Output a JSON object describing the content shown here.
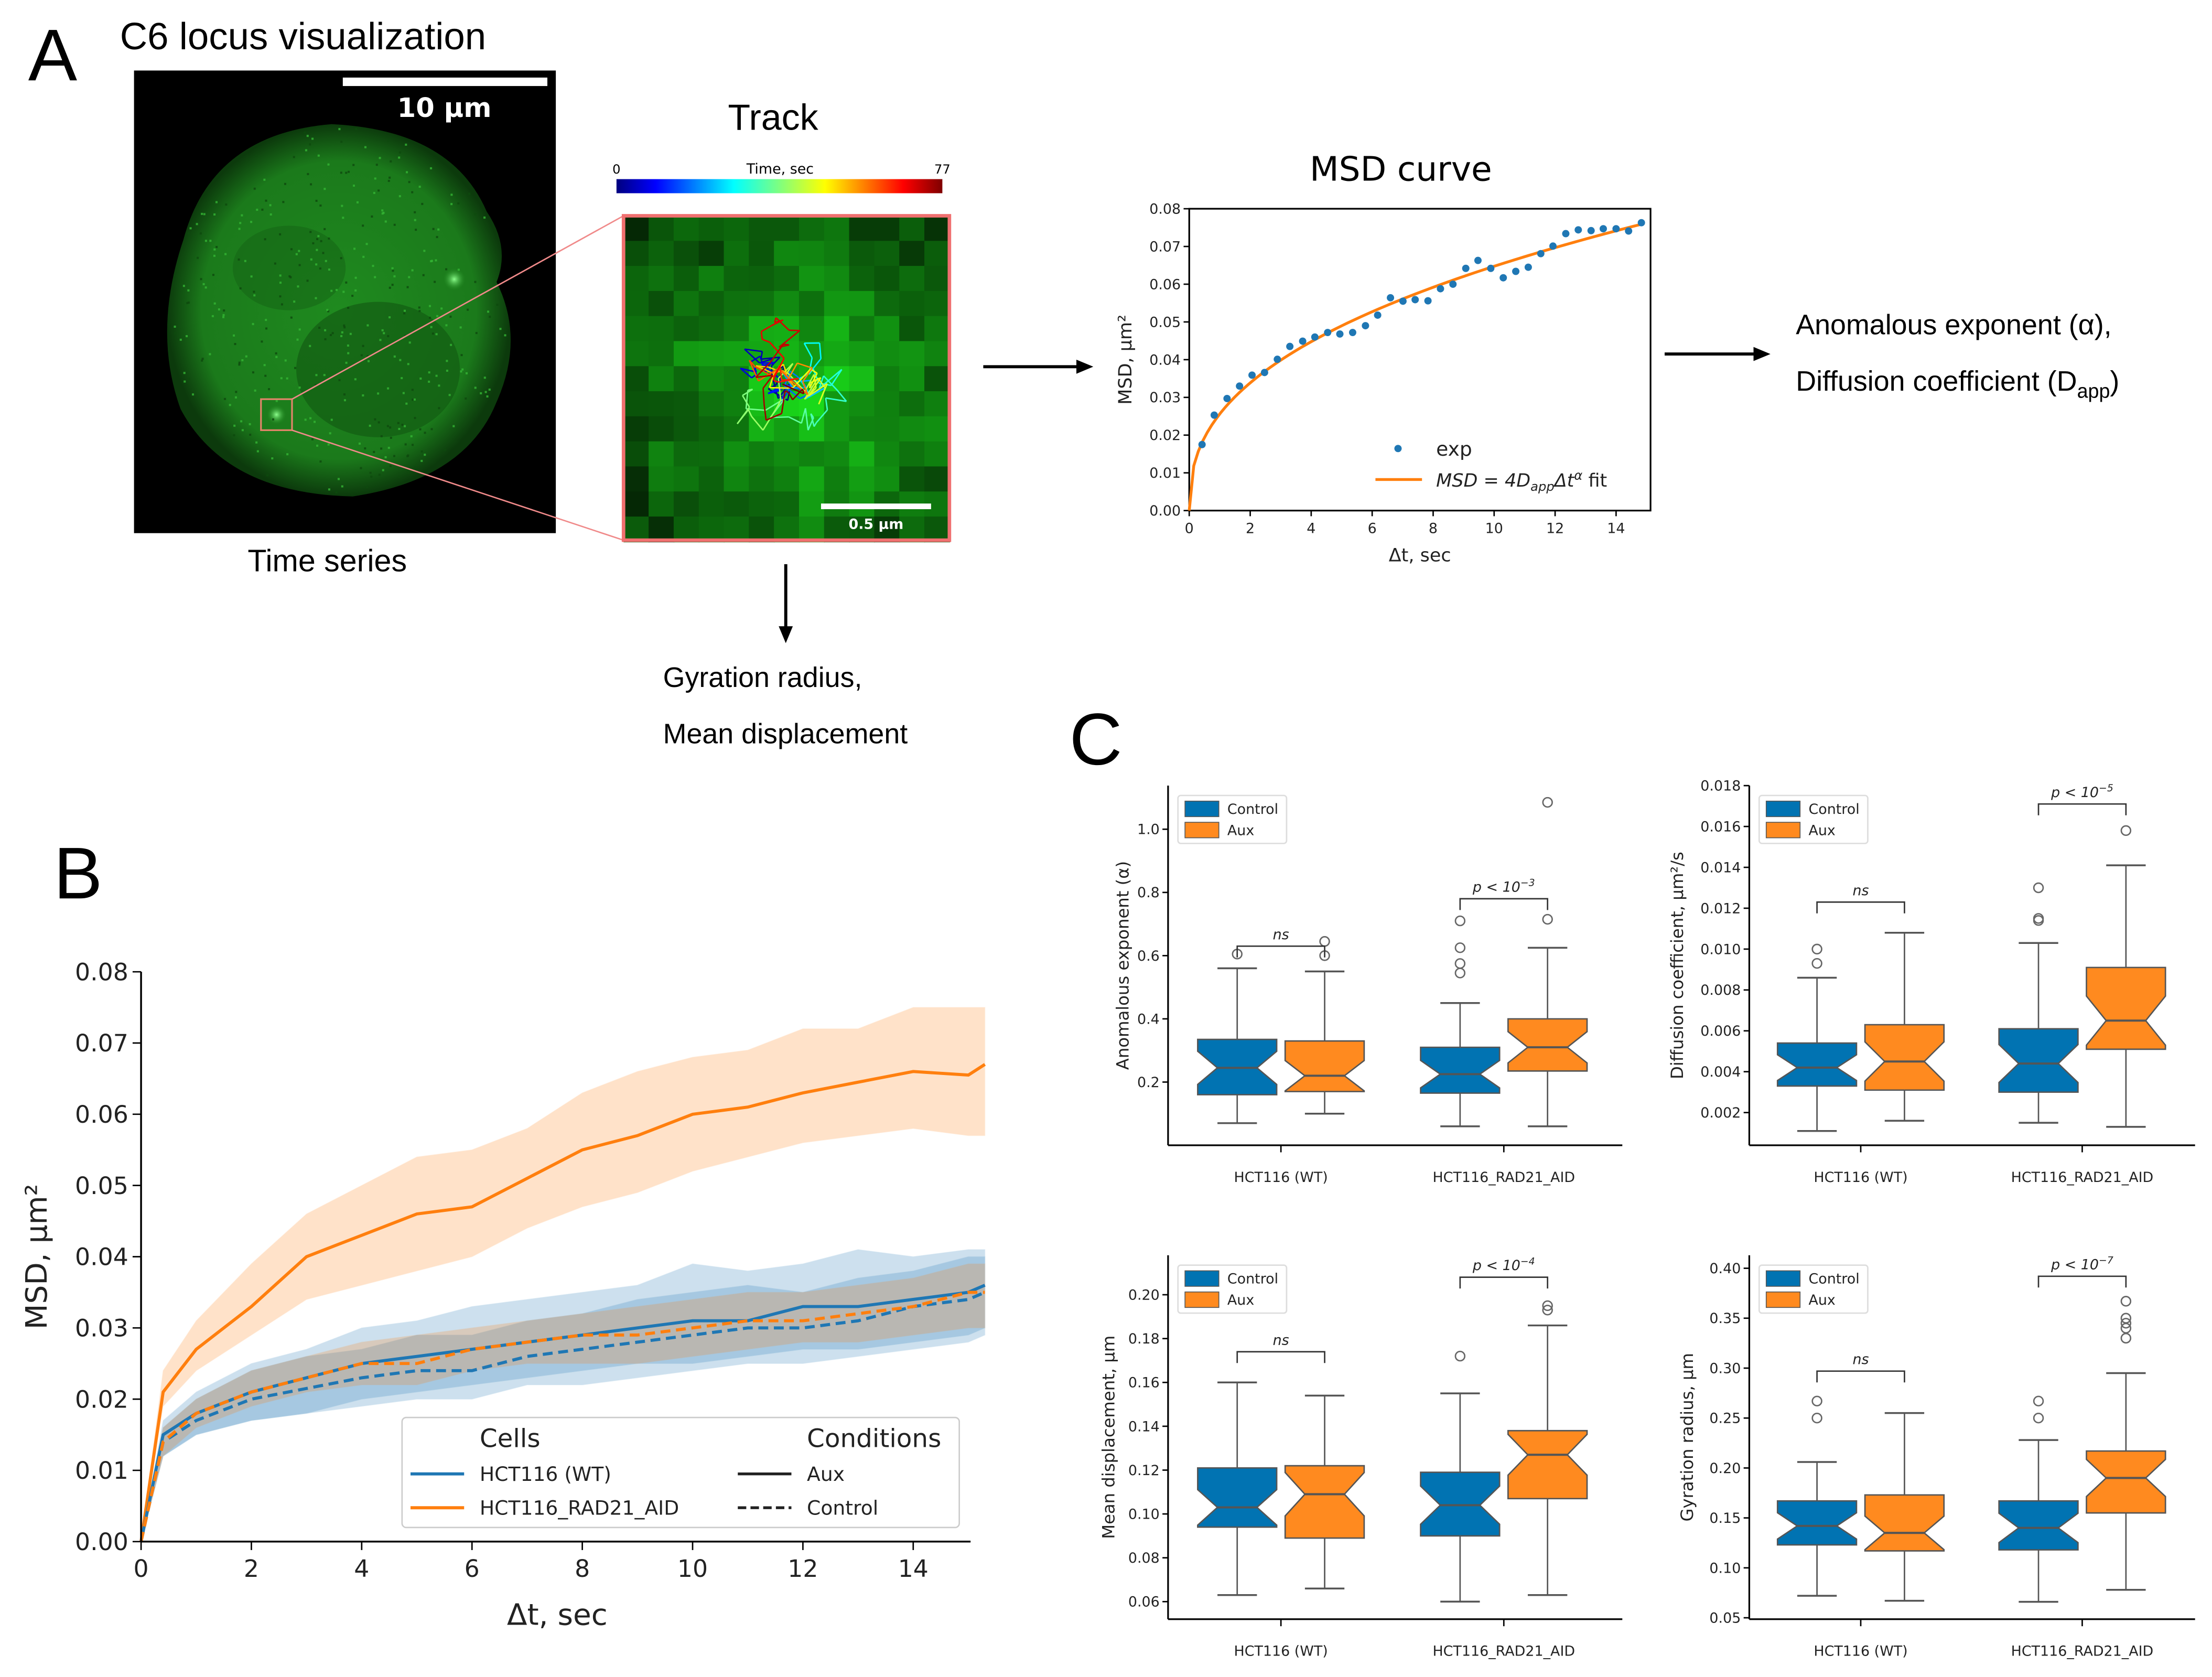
{
  "panel_labels": {
    "a": "A",
    "b": "B",
    "c": "C"
  },
  "panelA": {
    "title": "C6 locus visualization",
    "scalebar": "10 μm",
    "caption": "Time series",
    "track_title": "Track",
    "colorbar": {
      "min": "0",
      "label": "Time, sec",
      "max": "77"
    },
    "track_scalebar": "0.5 μm",
    "gyration_text": "Gyration radius,",
    "mean_disp_text": "Mean displacement",
    "outputs": {
      "line1": "Anomalous exponent (α),",
      "line2_main": "Diffusion coefficient (D",
      "line2_sub": "app",
      "line2_end": ")"
    }
  },
  "colors": {
    "blue": "#1f77b4",
    "orange": "#ff7f0e",
    "box_blue": "#0173b2",
    "box_orange": "#ff8a1f"
  },
  "chart_data": [
    {
      "id": "msd_curve",
      "type": "scatter",
      "title": "MSD curve",
      "xlabel": "Δt, sec",
      "ylabel": "MSD, μm²",
      "xlim": [
        0,
        15.13
      ],
      "ylim": [
        0,
        0.08
      ],
      "xticks": [
        "0",
        "2",
        "4",
        "6",
        "8",
        "10",
        "12",
        "14"
      ],
      "yticks": [
        "0.00",
        "0.01",
        "0.02",
        "0.03",
        "0.04",
        "0.05",
        "0.06",
        "0.07",
        "0.08"
      ],
      "legend": {
        "exp": "exp",
        "fit_parts": [
          "MSD = 4D",
          "app",
          "Δt",
          "α",
          "  fit"
        ],
        "placement": "lower-right"
      },
      "points": {
        "x": [
          0.42,
          0.82,
          1.24,
          1.65,
          2.06,
          2.47,
          2.89,
          3.3,
          3.72,
          4.12,
          4.54,
          4.94,
          5.36,
          5.78,
          6.18,
          6.6,
          7.01,
          7.41,
          7.83,
          8.24,
          8.65,
          9.07,
          9.47,
          9.89,
          10.3,
          10.71,
          11.12,
          11.53,
          11.93,
          12.35,
          12.76,
          13.18,
          13.58,
          14.0,
          14.41,
          14.83
        ],
        "y": [
          0.0175,
          0.0253,
          0.0297,
          0.033,
          0.0359,
          0.0366,
          0.0401,
          0.0435,
          0.0449,
          0.046,
          0.0472,
          0.0468,
          0.0472,
          0.049,
          0.0518,
          0.0564,
          0.0555,
          0.0559,
          0.0556,
          0.0588,
          0.06,
          0.0642,
          0.0663,
          0.0642,
          0.0617,
          0.0634,
          0.0645,
          0.0681,
          0.0701,
          0.0734,
          0.0744,
          0.0742,
          0.0747,
          0.0747,
          0.0741,
          0.0763
        ]
      },
      "fit": {
        "coefficient_4D": 0.0256,
        "alpha": 0.403,
        "x_max": 14.83
      }
    },
    {
      "id": "msd_comparison",
      "type": "line",
      "xlabel": "Δt, sec",
      "ylabel": "MSD, μm²",
      "xlim": [
        0,
        15.04
      ],
      "ylim": [
        0,
        0.08
      ],
      "xticks": [
        "0",
        "2",
        "4",
        "6",
        "8",
        "10",
        "12",
        "14"
      ],
      "yticks": [
        "0.00",
        "0.01",
        "0.02",
        "0.03",
        "0.04",
        "0.05",
        "0.06",
        "0.07",
        "0.08"
      ],
      "legend": {
        "cells_title": "Cells",
        "cells": [
          "HCT116 (WT)",
          "HCT116_RAD21_AID"
        ],
        "conditions_title": "Conditions",
        "conditions": [
          "Aux",
          "Control"
        ],
        "placement": "lower-right"
      },
      "x": [
        0,
        0.4,
        1,
        2,
        3,
        4,
        5,
        6,
        7,
        8,
        9,
        10,
        11,
        12,
        13,
        14,
        15,
        15.3
      ],
      "series": [
        {
          "name": "HCT116_RAD21_AID Aux",
          "color": "#ff7f0e",
          "dashed": false,
          "y": [
            0,
            0.021,
            0.027,
            0.033,
            0.04,
            0.043,
            0.046,
            0.047,
            0.051,
            0.055,
            0.057,
            0.06,
            0.061,
            0.063,
            0.0645,
            0.066,
            0.0655,
            0.067
          ],
          "lower": [
            0,
            0.019,
            0.024,
            0.029,
            0.034,
            0.036,
            0.038,
            0.04,
            0.044,
            0.047,
            0.049,
            0.052,
            0.054,
            0.056,
            0.057,
            0.058,
            0.057,
            0.057
          ],
          "upper": [
            0,
            0.024,
            0.031,
            0.039,
            0.046,
            0.05,
            0.054,
            0.055,
            0.058,
            0.063,
            0.066,
            0.068,
            0.069,
            0.072,
            0.072,
            0.075,
            0.075,
            0.075
          ]
        },
        {
          "name": "HCT116 (WT) Aux",
          "color": "#1f77b4",
          "dashed": false,
          "y": [
            0,
            0.015,
            0.018,
            0.021,
            0.023,
            0.025,
            0.026,
            0.027,
            0.028,
            0.029,
            0.03,
            0.031,
            0.031,
            0.033,
            0.033,
            0.034,
            0.035,
            0.036
          ],
          "lower": [
            0,
            0.012,
            0.015,
            0.017,
            0.018,
            0.02,
            0.021,
            0.022,
            0.023,
            0.024,
            0.025,
            0.025,
            0.026,
            0.027,
            0.027,
            0.028,
            0.029,
            0.03
          ],
          "upper": [
            0,
            0.017,
            0.021,
            0.025,
            0.027,
            0.03,
            0.031,
            0.033,
            0.034,
            0.035,
            0.036,
            0.039,
            0.038,
            0.039,
            0.041,
            0.04,
            0.041,
            0.041
          ]
        },
        {
          "name": "HCT116 (WT) Control",
          "color": "#1f77b4",
          "dashed": true,
          "y": [
            0,
            0.014,
            0.017,
            0.02,
            0.0215,
            0.023,
            0.024,
            0.024,
            0.026,
            0.027,
            0.028,
            0.029,
            0.03,
            0.03,
            0.031,
            0.033,
            0.034,
            0.035
          ],
          "lower": [
            0,
            0.012,
            0.015,
            0.017,
            0.018,
            0.019,
            0.02,
            0.02,
            0.022,
            0.022,
            0.023,
            0.024,
            0.025,
            0.025,
            0.026,
            0.027,
            0.028,
            0.029
          ],
          "upper": [
            0,
            0.016,
            0.02,
            0.024,
            0.026,
            0.027,
            0.029,
            0.029,
            0.031,
            0.032,
            0.034,
            0.035,
            0.036,
            0.035,
            0.037,
            0.038,
            0.04,
            0.04
          ]
        },
        {
          "name": "HCT116_RAD21_AID Control",
          "color": "#ff7f0e",
          "dashed": true,
          "y": [
            0,
            0.014,
            0.018,
            0.021,
            0.023,
            0.025,
            0.025,
            0.027,
            0.028,
            0.029,
            0.029,
            0.03,
            0.031,
            0.031,
            0.032,
            0.033,
            0.035,
            0.035
          ],
          "lower": [
            0,
            0.012,
            0.016,
            0.019,
            0.021,
            0.022,
            0.022,
            0.024,
            0.025,
            0.025,
            0.025,
            0.026,
            0.027,
            0.028,
            0.028,
            0.029,
            0.03,
            0.03
          ],
          "upper": [
            0,
            0.016,
            0.02,
            0.024,
            0.026,
            0.028,
            0.029,
            0.03,
            0.031,
            0.032,
            0.033,
            0.034,
            0.035,
            0.035,
            0.036,
            0.037,
            0.039,
            0.039
          ]
        }
      ]
    },
    {
      "id": "box_alpha",
      "type": "box",
      "ylabel": "Anomalous exponent (α)",
      "ylim": [
        0,
        1.138
      ],
      "yticks": [
        "0.2",
        "0.4",
        "0.6",
        "0.8",
        "1.0"
      ],
      "categories": [
        "HCT116 (WT)",
        "HCT116_RAD21_AID"
      ],
      "legend": [
        "Control",
        "Aux"
      ],
      "boxes": [
        [
          {
            "whislo": 0.07,
            "q1": 0.16,
            "med": 0.245,
            "q3": 0.335,
            "whishi": 0.56,
            "fliers": [
              0.605
            ]
          },
          {
            "whislo": 0.1,
            "q1": 0.17,
            "med": 0.22,
            "q3": 0.33,
            "whishi": 0.55,
            "fliers": [
              0.6,
              0.645
            ]
          }
        ],
        [
          {
            "whislo": 0.06,
            "q1": 0.165,
            "med": 0.225,
            "q3": 0.31,
            "whishi": 0.45,
            "fliers": [
              0.545,
              0.575,
              0.625,
              0.71
            ]
          },
          {
            "whislo": 0.06,
            "q1": 0.235,
            "med": 0.31,
            "q3": 0.4,
            "whishi": 0.625,
            "fliers": [
              0.715,
              1.085
            ]
          }
        ]
      ],
      "annotations": [
        {
          "text": "ns",
          "y": 0.63
        },
        {
          "text": "p < 10",
          "exp": "−3",
          "y": 0.78
        }
      ]
    },
    {
      "id": "box_diffusion",
      "type": "box",
      "ylabel": "Diffusion coefficient, μm²/s",
      "ylim": [
        0.0004,
        0.018
      ],
      "yticks": [
        "0.002",
        "0.004",
        "0.006",
        "0.008",
        "0.010",
        "0.012",
        "0.014",
        "0.016",
        "0.018"
      ],
      "categories": [
        "HCT116 (WT)",
        "HCT116_RAD21_AID"
      ],
      "legend": [
        "Control",
        "Aux"
      ],
      "boxes": [
        [
          {
            "whislo": 0.0011,
            "q1": 0.0033,
            "med": 0.0042,
            "q3": 0.0054,
            "whishi": 0.0086,
            "fliers": [
              0.0093,
              0.01
            ]
          },
          {
            "whislo": 0.0016,
            "q1": 0.0031,
            "med": 0.0045,
            "q3": 0.0063,
            "whishi": 0.0108,
            "fliers": []
          }
        ],
        [
          {
            "whislo": 0.0015,
            "q1": 0.003,
            "med": 0.0044,
            "q3": 0.0061,
            "whishi": 0.0103,
            "fliers": [
              0.0114,
              0.0115,
              0.013
            ]
          },
          {
            "whislo": 0.0013,
            "q1": 0.0051,
            "med": 0.0065,
            "q3": 0.0091,
            "whishi": 0.0141,
            "fliers": [
              0.0158
            ]
          }
        ]
      ],
      "annotations": [
        {
          "text": "ns",
          "y": 0.0123
        },
        {
          "text": "p < 10",
          "exp": "−5",
          "y": 0.0171
        }
      ]
    },
    {
      "id": "box_mean_displacement",
      "type": "box",
      "ylabel": "Mean displacement, μm",
      "ylim": [
        0.052,
        0.218
      ],
      "yticks": [
        "0.06",
        "0.08",
        "0.10",
        "0.12",
        "0.14",
        "0.16",
        "0.18",
        "0.20"
      ],
      "categories": [
        "HCT116 (WT)",
        "HCT116_RAD21_AID"
      ],
      "legend": [
        "Control",
        "Aux"
      ],
      "boxes": [
        [
          {
            "whislo": 0.063,
            "q1": 0.094,
            "med": 0.103,
            "q3": 0.121,
            "whishi": 0.16,
            "fliers": []
          },
          {
            "whislo": 0.066,
            "q1": 0.089,
            "med": 0.109,
            "q3": 0.122,
            "whishi": 0.154,
            "fliers": []
          }
        ],
        [
          {
            "whislo": 0.06,
            "q1": 0.09,
            "med": 0.104,
            "q3": 0.119,
            "whishi": 0.155,
            "fliers": [
              0.172
            ]
          },
          {
            "whislo": 0.063,
            "q1": 0.107,
            "med": 0.127,
            "q3": 0.138,
            "whishi": 0.186,
            "fliers": [
              0.193,
              0.195
            ]
          }
        ]
      ],
      "annotations": [
        {
          "text": "ns",
          "y": 0.174
        },
        {
          "text": "p < 10",
          "exp": "−4",
          "y": 0.208
        }
      ]
    },
    {
      "id": "box_gyration",
      "type": "box",
      "ylabel": "Gyration radius, μm",
      "ylim": [
        0.0486,
        0.413
      ],
      "yticks": [
        "0.05",
        "0.10",
        "0.15",
        "0.20",
        "0.25",
        "0.30",
        "0.35",
        "0.40"
      ],
      "categories": [
        "HCT116 (WT)",
        "HCT116_RAD21_AID"
      ],
      "legend": [
        "Control",
        "Aux"
      ],
      "boxes": [
        [
          {
            "whislo": 0.072,
            "q1": 0.123,
            "med": 0.142,
            "q3": 0.167,
            "whishi": 0.206,
            "fliers": [
              0.25,
              0.267
            ]
          },
          {
            "whislo": 0.067,
            "q1": 0.117,
            "med": 0.135,
            "q3": 0.173,
            "whishi": 0.255,
            "fliers": []
          }
        ],
        [
          {
            "whislo": 0.066,
            "q1": 0.118,
            "med": 0.14,
            "q3": 0.167,
            "whishi": 0.228,
            "fliers": [
              0.25,
              0.267
            ]
          },
          {
            "whislo": 0.078,
            "q1": 0.155,
            "med": 0.19,
            "q3": 0.217,
            "whishi": 0.295,
            "fliers": [
              0.33,
              0.34,
              0.345,
              0.35,
              0.367
            ]
          }
        ]
      ],
      "annotations": [
        {
          "text": "ns",
          "y": 0.297
        },
        {
          "text": "p < 10",
          "exp": "−7",
          "y": 0.392
        }
      ]
    }
  ]
}
